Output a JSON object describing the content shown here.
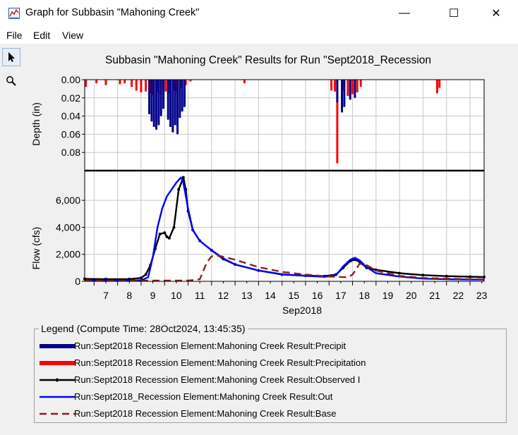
{
  "window": {
    "title": "Graph for Subbasin \"Mahoning Creek\"",
    "minimize_glyph": "—",
    "maximize_glyph": "☐",
    "close_glyph": "✕"
  },
  "menu": {
    "file": "File",
    "edit": "Edit",
    "view": "View"
  },
  "tools": {
    "pointer_icon": "pointer-icon",
    "zoom_icon": "zoom-icon"
  },
  "colors": {
    "precip_dark": "#00008b",
    "precipitation": "#ff0000",
    "observed": "#000000",
    "outflow": "#0000ff",
    "baseflow": "#8b2020"
  },
  "chart_data": {
    "type": "line",
    "title": "Subbasin \"Mahoning Creek\" Results for Run \"Sept2018_Recession",
    "xlabel": "Sep2018",
    "xlim": [
      6.6,
      23.6
    ],
    "x_ticks": [
      7,
      8,
      9,
      10,
      11,
      12,
      13,
      14,
      15,
      16,
      17,
      18,
      19,
      20,
      21,
      22,
      23
    ],
    "grid": true,
    "panels": [
      {
        "name": "precipitation",
        "ylabel": "Depth (in)",
        "ylim": [
          0.1,
          0.0
        ],
        "inverted": true,
        "y_ticks": [
          "0.00",
          "0.02",
          "0.04",
          "0.06",
          "0.08"
        ],
        "series": [
          {
            "name": "Run:Sept2018  Recession Element:Mahoning Creek Result:Precipitation",
            "style": "bars",
            "color": "#ff0000",
            "x": [
              6.65,
              7.1,
              7.5,
              8.1,
              8.3,
              8.6,
              8.8,
              9.0,
              9.2,
              9.4,
              9.5,
              9.7,
              9.85,
              10.05,
              10.2,
              10.4,
              10.5,
              10.7,
              10.9,
              11.1,
              13.4,
              17.1,
              17.25,
              17.35,
              17.6,
              17.8,
              18.0,
              18.2,
              18.35,
              21.6,
              21.7
            ],
            "values": [
              0.008,
              0.004,
              0.006,
              0.005,
              0.004,
              0.008,
              0.012,
              0.014,
              0.013,
              0.015,
              0.017,
              0.014,
              0.016,
              0.013,
              0.015,
              0.012,
              0.013,
              0.009,
              0.006,
              0.002,
              0.004,
              0.012,
              0.013,
              0.092,
              0.012,
              0.018,
              0.016,
              0.014,
              0.008,
              0.015,
              0.009
            ]
          },
          {
            "name": "Run:Sept2018  Recession Element:Mahoning Creek Result:Precipit",
            "style": "bars",
            "color": "#00008b",
            "x": [
              9.35,
              9.45,
              9.55,
              9.65,
              9.75,
              9.85,
              9.95,
              10.15,
              10.25,
              10.35,
              10.45,
              10.55,
              10.65,
              10.75,
              10.85,
              17.35,
              17.55,
              17.65,
              17.9,
              18.1
            ],
            "values": [
              0.038,
              0.046,
              0.052,
              0.055,
              0.05,
              0.04,
              0.032,
              0.044,
              0.052,
              0.058,
              0.05,
              0.06,
              0.042,
              0.035,
              0.03,
              0.025,
              0.036,
              0.03,
              0.022,
              0.02
            ]
          }
        ]
      },
      {
        "name": "flow",
        "ylabel": "Flow (cfs)",
        "ylim": [
          0,
          8200
        ],
        "y_ticks": [
          "0",
          "2,000",
          "4,000",
          "6,000"
        ],
        "series": [
          {
            "name": "Run:Sept2018  Recession Element:Mahoning Creek Result:Observed I",
            "style": "line-markers",
            "color": "#000000",
            "x": [
              6.6,
              7.5,
              8.5,
              9.0,
              9.2,
              9.4,
              9.6,
              9.8,
              10.0,
              10.1,
              10.2,
              10.4,
              10.6,
              10.8,
              10.9,
              11.0,
              11.2,
              11.5,
              12.0,
              12.5,
              13.0,
              14.0,
              15.0,
              16.0,
              16.8,
              17.3,
              17.6,
              17.9,
              18.1,
              18.3,
              18.6,
              19.0,
              20.0,
              21.0,
              22.0,
              23.0,
              23.6
            ],
            "values": [
              180,
              160,
              160,
              250,
              500,
              1200,
              2400,
              3500,
              3600,
              3300,
              3200,
              4000,
              6800,
              7700,
              6800,
              5200,
              3800,
              3000,
              2300,
              1650,
              1250,
              800,
              500,
              420,
              380,
              500,
              1000,
              1500,
              1600,
              1450,
              1000,
              850,
              600,
              460,
              380,
              340,
              320
            ]
          },
          {
            "name": "Run:Sept2018_Recession Element:Mahoning Creek Result:Out",
            "style": "line",
            "color": "#0000ff",
            "x": [
              6.6,
              7.5,
              8.5,
              9.0,
              9.3,
              9.5,
              9.7,
              9.9,
              10.1,
              10.3,
              10.5,
              10.7,
              10.8,
              11.0,
              11.2,
              11.5,
              12.0,
              12.5,
              13.0,
              14.0,
              15.0,
              16.0,
              16.8,
              17.3,
              17.6,
              17.9,
              18.1,
              18.3,
              18.6,
              19.0,
              20.0,
              21.0,
              22.0,
              23.0,
              23.6
            ],
            "values": [
              60,
              50,
              50,
              80,
              300,
              1800,
              4000,
              5400,
              6300,
              6800,
              7300,
              7700,
              7300,
              5400,
              3800,
              3000,
              2300,
              1700,
              1250,
              800,
              520,
              400,
              330,
              450,
              1100,
              1600,
              1750,
              1550,
              1050,
              600,
              350,
              200,
              150,
              130,
              120
            ]
          },
          {
            "name": "Run:Sept2018  Recession Element:Mahoning Creek Result:Base",
            "style": "dashed",
            "color": "#8b2020",
            "x": [
              6.6,
              9.0,
              11.0,
              11.5,
              11.8,
              12.0,
              12.3,
              13.0,
              14.0,
              15.0,
              16.0,
              17.0,
              17.8,
              18.0,
              18.3,
              18.6,
              19.0,
              20.0,
              21.0,
              22.0,
              23.0,
              23.6
            ],
            "values": [
              60,
              50,
              50,
              150,
              1400,
              1850,
              1900,
              1600,
              1050,
              700,
              500,
              350,
              300,
              500,
              1300,
              1200,
              800,
              400,
              250,
              200,
              160,
              150
            ]
          }
        ]
      }
    ]
  },
  "legend": {
    "title": "Legend (Compute Time: 28Oct2024, 13:45:35)",
    "items": [
      {
        "label": "Run:Sept2018  Recession Element:Mahoning Creek Result:Precipit",
        "color": "#00008b",
        "style": "thick"
      },
      {
        "label": "Run:Sept2018  Recession Element:Mahoning Creek Result:Precipitation",
        "color": "#ff0000",
        "style": "thick"
      },
      {
        "label": "Run:Sept2018  Recession Element:Mahoning Creek Result:Observed I",
        "color": "#000000",
        "style": "marker"
      },
      {
        "label": "Run:Sept2018_Recession Element:Mahoning Creek Result:Out",
        "color": "#0000ff",
        "style": "line"
      },
      {
        "label": "Run:Sept2018  Recession Element:Mahoning Creek Result:Base",
        "color": "#8b2020",
        "style": "dashed"
      }
    ]
  }
}
